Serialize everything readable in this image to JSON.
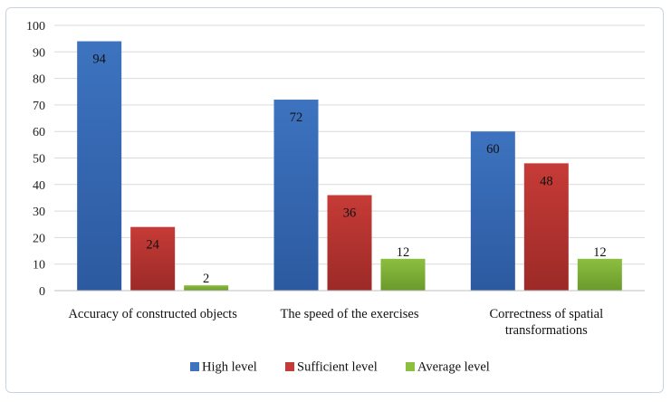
{
  "chart_data": {
    "type": "bar",
    "categories": [
      [
        "Accuracy of constructed objects"
      ],
      [
        "The speed of the exercises"
      ],
      [
        "Correctness of spatial",
        "transformations"
      ]
    ],
    "series": [
      {
        "name": "High level",
        "values": [
          94,
          72,
          60
        ],
        "color": "#3d73bf",
        "dark": "#2c5aa0"
      },
      {
        "name": "Sufficient level",
        "values": [
          24,
          36,
          48
        ],
        "color": "#c63b37",
        "dark": "#9c2a27"
      },
      {
        "name": "Average level",
        "values": [
          2,
          12,
          12
        ],
        "color": "#8cbf3f",
        "dark": "#6a9a2c"
      }
    ],
    "yticks": [
      0,
      10,
      20,
      30,
      40,
      50,
      60,
      70,
      80,
      90,
      100
    ],
    "ylim": [
      0,
      100
    ],
    "title": "",
    "xlabel": "",
    "ylabel": "",
    "grid": true,
    "legend": "bottom"
  }
}
